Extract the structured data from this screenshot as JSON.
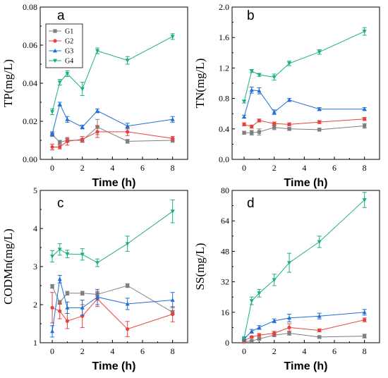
{
  "chart_data": [
    {
      "type": "line",
      "panel_label": "a",
      "xlabel": "Time (h)",
      "ylabel": "TP(mg/L)",
      "x": [
        0,
        0.5,
        1,
        2,
        3,
        5,
        8
      ],
      "xlim": [
        -0.8,
        9
      ],
      "ylim": [
        0,
        0.08
      ],
      "xticks": [
        0,
        2,
        4,
        6,
        8
      ],
      "xtick_labels": [
        "0",
        "2",
        "4",
        "6",
        "8"
      ],
      "yticks": [
        0,
        0.02,
        0.04,
        0.06,
        0.08
      ],
      "ytick_labels": [
        "0.00",
        "0.02",
        "0.04",
        "0.06",
        "0.08"
      ],
      "legend": {
        "position": "top-left",
        "entries": [
          "G1",
          "G2",
          "G3",
          "G4"
        ]
      },
      "series": [
        {
          "name": "G1",
          "color": "#7f7f7f",
          "marker": "square",
          "values": [
            0.013,
            0.009,
            0.01,
            0.01,
            0.017,
            0.0095,
            0.01
          ],
          "errors": [
            0.001,
            0.001,
            0.001,
            0.001,
            0.004,
            0.001,
            0.001
          ]
        },
        {
          "name": "G2",
          "color": "#e8413c",
          "marker": "circle",
          "values": [
            0.0065,
            0.0065,
            0.0095,
            0.0105,
            0.0145,
            0.0145,
            0.011
          ],
          "errors": [
            0.0015,
            0.001,
            0.002,
            0.0015,
            0.003,
            0.002,
            0.001
          ]
        },
        {
          "name": "G3",
          "color": "#1f6fd6",
          "marker": "triangle-up",
          "values": [
            0.0135,
            0.029,
            0.021,
            0.017,
            0.0255,
            0.0175,
            0.021
          ],
          "errors": [
            0.001,
            0.001,
            0.0015,
            0.001,
            0.001,
            0.0015,
            0.0015
          ]
        },
        {
          "name": "G4",
          "color": "#1ab07c",
          "marker": "triangle-down",
          "values": [
            0.025,
            0.0405,
            0.045,
            0.037,
            0.057,
            0.052,
            0.0645
          ],
          "errors": [
            0.0015,
            0.0015,
            0.0015,
            0.0035,
            0.0015,
            0.002,
            0.0015
          ]
        }
      ]
    },
    {
      "type": "line",
      "panel_label": "b",
      "xlabel": "Time (h)",
      "ylabel": "TN(mg/L)",
      "x": [
        0,
        0.5,
        1,
        2,
        3,
        5,
        8
      ],
      "xlim": [
        -0.8,
        9
      ],
      "ylim": [
        0,
        2.0
      ],
      "xticks": [
        0,
        2,
        4,
        6,
        8
      ],
      "xtick_labels": [
        "0",
        "2",
        "4",
        "6",
        "8"
      ],
      "yticks": [
        0,
        0.4,
        0.8,
        1.2,
        1.6,
        2.0
      ],
      "ytick_labels": [
        "0.0",
        "0.4",
        "0.8",
        "1.2",
        "1.6",
        "2.0"
      ],
      "series": [
        {
          "name": "G1",
          "color": "#7f7f7f",
          "marker": "square",
          "values": [
            0.35,
            0.35,
            0.36,
            0.42,
            0.4,
            0.39,
            0.44
          ],
          "errors": [
            0.02,
            0.03,
            0.04,
            0.03,
            0.02,
            0.02,
            0.03
          ]
        },
        {
          "name": "G2",
          "color": "#e8413c",
          "marker": "circle",
          "values": [
            0.46,
            0.43,
            0.51,
            0.47,
            0.46,
            0.49,
            0.53
          ],
          "errors": [
            0.02,
            0.02,
            0.02,
            0.02,
            0.02,
            0.02,
            0.02
          ]
        },
        {
          "name": "G3",
          "color": "#1f6fd6",
          "marker": "triangle-up",
          "values": [
            0.56,
            0.91,
            0.9,
            0.62,
            0.78,
            0.66,
            0.66
          ],
          "errors": [
            0.02,
            0.04,
            0.04,
            0.03,
            0.02,
            0.02,
            0.02
          ]
        },
        {
          "name": "G4",
          "color": "#1ab07c",
          "marker": "triangle-down",
          "values": [
            0.76,
            1.16,
            1.11,
            1.08,
            1.26,
            1.41,
            1.68
          ],
          "errors": [
            0.02,
            0.02,
            0.02,
            0.04,
            0.03,
            0.03,
            0.05
          ]
        }
      ]
    },
    {
      "type": "line",
      "panel_label": "c",
      "xlabel": "Time (h)",
      "ylabel": "CODMn(mg/L)",
      "x": [
        0,
        0.5,
        1,
        2,
        3,
        5,
        8
      ],
      "xlim": [
        -0.8,
        9
      ],
      "ylim": [
        1,
        5
      ],
      "xticks": [
        0,
        2,
        4,
        6,
        8
      ],
      "xtick_labels": [
        "0",
        "2",
        "4",
        "6",
        "8"
      ],
      "yticks": [
        1,
        2,
        3,
        4,
        5
      ],
      "ytick_labels": [
        "1",
        "2",
        "3",
        "4",
        "5"
      ],
      "series": [
        {
          "name": "G1",
          "color": "#7f7f7f",
          "marker": "square",
          "values": [
            2.48,
            2.06,
            2.3,
            2.3,
            2.27,
            2.5,
            1.8
          ],
          "errors": [
            0.05,
            0.05,
            0.05,
            0.05,
            0.05,
            0.05,
            0.05
          ]
        },
        {
          "name": "G2",
          "color": "#e8413c",
          "marker": "circle",
          "values": [
            1.92,
            1.83,
            1.57,
            1.7,
            2.15,
            1.36,
            1.75
          ],
          "errors": [
            0.4,
            0.2,
            0.2,
            0.3,
            0.2,
            0.2,
            0.2
          ]
        },
        {
          "name": "G3",
          "color": "#1f6fd6",
          "marker": "triangle-up",
          "values": [
            1.3,
            2.67,
            1.92,
            1.92,
            2.2,
            2.02,
            2.12
          ],
          "errors": [
            0.15,
            0.1,
            0.15,
            0.2,
            0.2,
            0.15,
            0.2
          ]
        },
        {
          "name": "G4",
          "color": "#1ab07c",
          "marker": "triangle-down",
          "values": [
            3.27,
            3.45,
            3.33,
            3.32,
            3.1,
            3.6,
            4.45
          ],
          "errors": [
            0.15,
            0.15,
            0.1,
            0.15,
            0.1,
            0.2,
            0.3
          ]
        }
      ]
    },
    {
      "type": "line",
      "panel_label": "d",
      "xlabel": "Time (h)",
      "ylabel": "SS(mg/L)",
      "x": [
        0,
        0.5,
        1,
        2,
        3,
        5,
        8
      ],
      "xlim": [
        -0.8,
        9
      ],
      "ylim": [
        0,
        80
      ],
      "xticks": [
        0,
        2,
        4,
        6,
        8
      ],
      "xtick_labels": [
        "0",
        "2",
        "4",
        "6",
        "8"
      ],
      "yticks": [
        0,
        16,
        32,
        48,
        64,
        80
      ],
      "ytick_labels": [
        "0",
        "16",
        "32",
        "48",
        "64",
        "80"
      ],
      "series": [
        {
          "name": "G1",
          "color": "#7f7f7f",
          "marker": "square",
          "values": [
            0.5,
            1.0,
            2.0,
            4.0,
            5.0,
            3.0,
            3.5
          ],
          "errors": [
            0.3,
            0.3,
            0.5,
            0.8,
            1.0,
            0.5,
            1.0
          ]
        },
        {
          "name": "G2",
          "color": "#e8413c",
          "marker": "circle",
          "values": [
            1.0,
            3.0,
            4.0,
            5.0,
            8.0,
            6.5,
            12.0
          ],
          "errors": [
            0.5,
            0.5,
            0.8,
            1.0,
            2.0,
            0.8,
            1.0
          ]
        },
        {
          "name": "G3",
          "color": "#1f6fd6",
          "marker": "triangle-up",
          "values": [
            2.0,
            6.0,
            8.0,
            11.5,
            13.0,
            14.0,
            16.0
          ],
          "errors": [
            0.5,
            1.0,
            1.0,
            1.0,
            2.0,
            1.5,
            1.5
          ]
        },
        {
          "name": "G4",
          "color": "#1ab07c",
          "marker": "triangle-down",
          "values": [
            2.5,
            22.0,
            26.0,
            33.0,
            42.0,
            53.0,
            75.0
          ],
          "errors": [
            0.5,
            2.0,
            2.0,
            3.0,
            5.0,
            3.0,
            4.0
          ]
        }
      ]
    }
  ]
}
